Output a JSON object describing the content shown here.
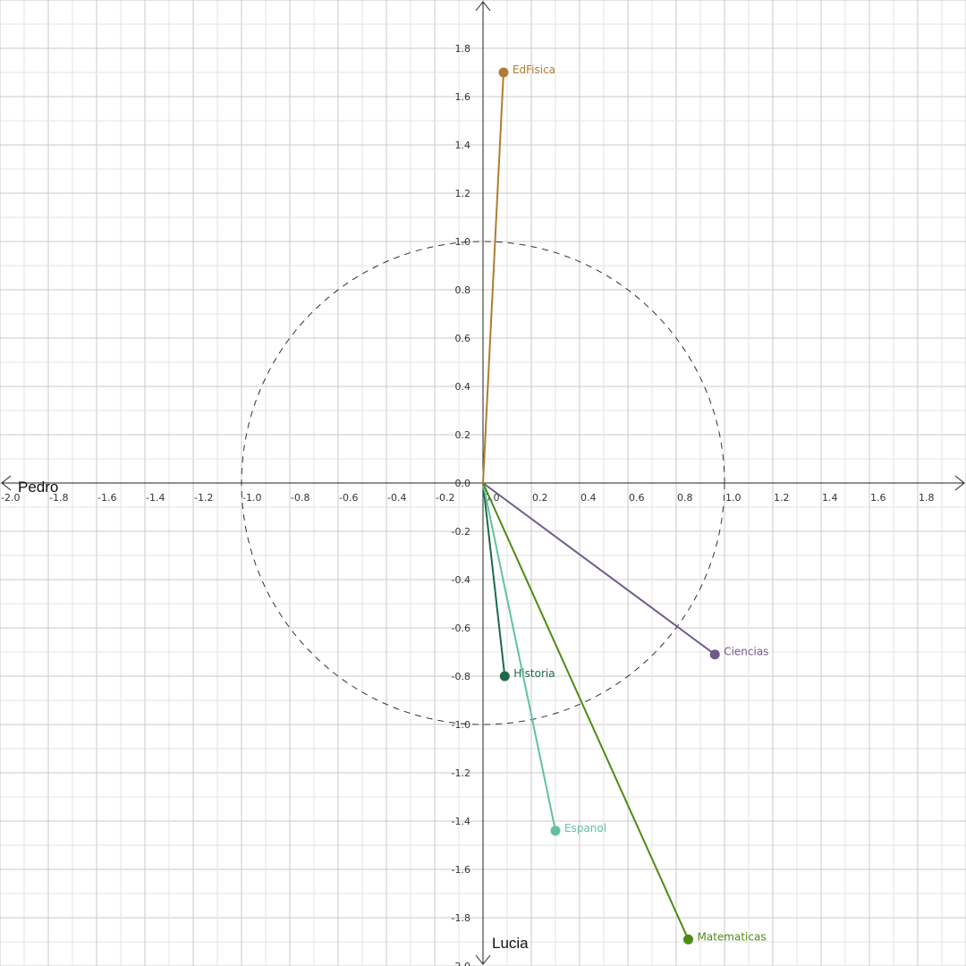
{
  "chart_data": {
    "type": "scatter",
    "title": "",
    "xlabel": "Pedro",
    "ylabel": "Lucia",
    "xlim": [
      -2.0,
      2.0
    ],
    "ylim": [
      -2.0,
      2.0
    ],
    "grid": true,
    "grid_minor_step": 0.1,
    "grid_major_step": 0.2,
    "unit_circle": true,
    "x_ticks": [
      "-2.0",
      "-1.8",
      "-1.6",
      "-1.4",
      "-1.2",
      "-1.0",
      "-0.8",
      "-0.6",
      "-0.4",
      "-0.2",
      "0.0",
      "0.2",
      "0.4",
      "0.6",
      "0.8",
      "1.0",
      "1.2",
      "1.4",
      "1.6",
      "1.8"
    ],
    "y_ticks": [
      "1.8",
      "1.6",
      "1.4",
      "1.2",
      "1.0",
      "0.8",
      "0.6",
      "0.4",
      "0.2",
      "0.0",
      "-0.2",
      "-0.4",
      "-0.6",
      "-0.8",
      "-1.0",
      "-1.2",
      "-1.4",
      "-1.6",
      "-1.8",
      "-2.0"
    ],
    "series": [
      {
        "name": "EdFisica",
        "x": 0.085,
        "y": 1.7,
        "color": "#b07c32"
      },
      {
        "name": "Ciencias",
        "x": 0.96,
        "y": -0.71,
        "color": "#715a8a"
      },
      {
        "name": "Historia",
        "x": 0.09,
        "y": -0.8,
        "color": "#1c6a48"
      },
      {
        "name": "Espanol",
        "x": 0.3,
        "y": -1.44,
        "color": "#62c29c"
      },
      {
        "name": "Matematicas",
        "x": 0.85,
        "y": -1.89,
        "color": "#4f8a14"
      }
    ]
  }
}
